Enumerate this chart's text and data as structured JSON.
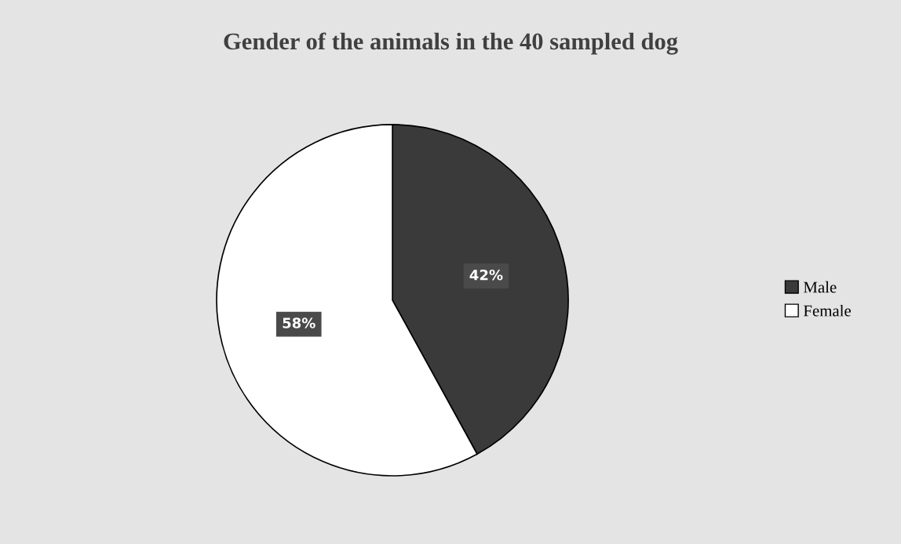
{
  "chart_data": {
    "type": "pie",
    "title": "Gender of the animals in the 40 sampled dog",
    "categories": [
      "Male",
      "Female"
    ],
    "values": [
      42,
      58
    ],
    "colors": [
      "#3a3a3a",
      "#ffffff"
    ],
    "value_labels": [
      "42%",
      "58%"
    ],
    "legend": "right"
  }
}
